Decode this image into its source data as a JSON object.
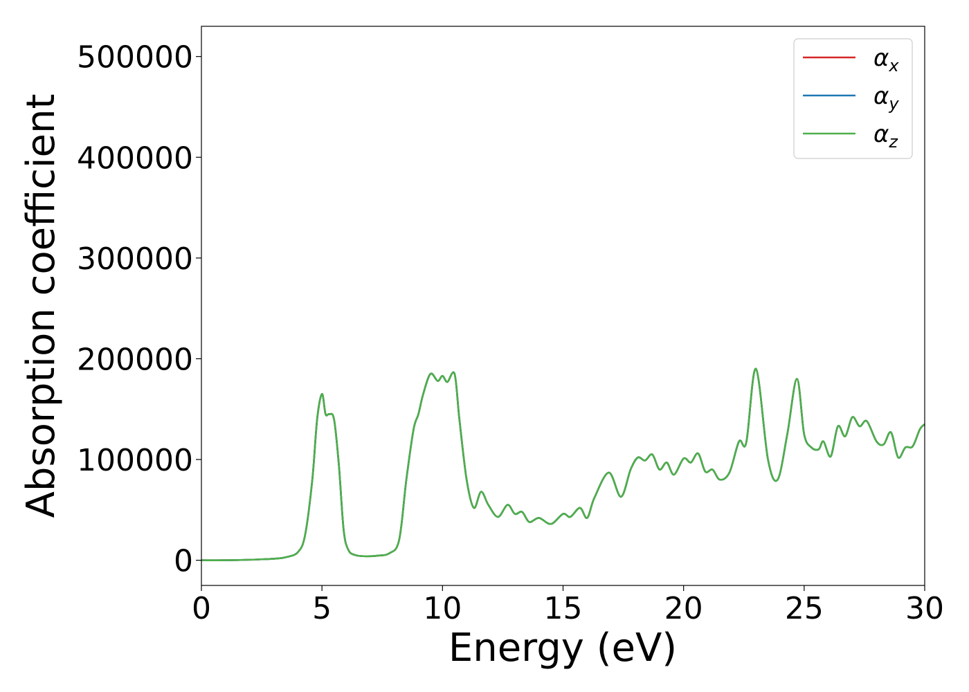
{
  "chart_data": {
    "type": "line",
    "title": "",
    "xlabel": "Energy (eV)",
    "ylabel": "Absorption coefficient",
    "xlim": [
      0,
      30
    ],
    "ylim": [
      -25000,
      530000
    ],
    "xticks": [
      0,
      5,
      10,
      15,
      20,
      25,
      30
    ],
    "xtick_labels": [
      "0",
      "5",
      "10",
      "15",
      "20",
      "25",
      "30"
    ],
    "yticks": [
      0,
      100000,
      200000,
      300000,
      400000,
      500000
    ],
    "ytick_labels": [
      "0",
      "100000",
      "200000",
      "300000",
      "400000",
      "500000"
    ],
    "grid": false,
    "legend_position": "top-right",
    "legend": [
      {
        "symbol": "α",
        "subscript": "x",
        "color": "#d62728"
      },
      {
        "symbol": "α",
        "subscript": "y",
        "color": "#1f77b4"
      },
      {
        "symbol": "α",
        "subscript": "z",
        "color": "#4daf4a"
      }
    ],
    "x": [
      0,
      1,
      2,
      3,
      3.5,
      4,
      4.3,
      4.6,
      4.8,
      5.0,
      5.15,
      5.3,
      5.5,
      5.7,
      5.9,
      6.1,
      6.4,
      6.8,
      7.3,
      7.8,
      8.2,
      8.5,
      8.8,
      9.0,
      9.2,
      9.5,
      9.8,
      10.0,
      10.2,
      10.5,
      10.7,
      11.0,
      11.3,
      11.6,
      11.9,
      12.3,
      12.7,
      13.0,
      13.3,
      13.6,
      14.0,
      14.5,
      15.0,
      15.3,
      15.7,
      16.0,
      16.3,
      16.9,
      17.4,
      17.8,
      18.1,
      18.4,
      18.7,
      19.0,
      19.3,
      19.6,
      20.0,
      20.3,
      20.6,
      20.9,
      21.2,
      21.5,
      21.9,
      22.3,
      22.6,
      23.0,
      23.5,
      23.9,
      24.3,
      24.7,
      25.0,
      25.3,
      25.6,
      25.8,
      26.1,
      26.4,
      26.7,
      27.0,
      27.3,
      27.6,
      28.0,
      28.3,
      28.6,
      28.9,
      29.2,
      29.5,
      29.8,
      30.0
    ],
    "series": [
      {
        "values": [
          0,
          0,
          500,
          1500,
          3000,
          8000,
          25000,
          80000,
          140000,
          165000,
          145000,
          145000,
          140000,
          95000,
          30000,
          10000,
          5000,
          4000,
          4500,
          7000,
          20000,
          80000,
          130000,
          145000,
          165000,
          185000,
          178000,
          183000,
          177000,
          185000,
          140000,
          80000,
          52000,
          68000,
          55000,
          43000,
          55000,
          46000,
          48000,
          38000,
          42000,
          36000,
          46000,
          43000,
          52000,
          42000,
          62000,
          87000,
          63000,
          90000,
          102000,
          99000,
          105000,
          90000,
          97000,
          85000,
          101000,
          97000,
          106000,
          88000,
          90000,
          80000,
          87000,
          118000,
          117000,
          190000,
          100000,
          80000,
          125000,
          180000,
          125000,
          112000,
          110000,
          118000,
          103000,
          133000,
          123000,
          142000,
          133000,
          138000,
          118000,
          115000,
          127000,
          102000,
          112000,
          113000,
          130000,
          135000
        ]
      },
      {
        "values": [
          0,
          0,
          500,
          1500,
          3000,
          8000,
          25000,
          80000,
          140000,
          165000,
          145000,
          145000,
          140000,
          95000,
          30000,
          10000,
          5000,
          4000,
          4500,
          7000,
          20000,
          80000,
          130000,
          145000,
          165000,
          185000,
          178000,
          183000,
          177000,
          185000,
          140000,
          80000,
          52000,
          68000,
          55000,
          43000,
          55000,
          46000,
          48000,
          38000,
          42000,
          36000,
          46000,
          43000,
          52000,
          42000,
          62000,
          87000,
          63000,
          90000,
          102000,
          99000,
          105000,
          90000,
          97000,
          85000,
          101000,
          97000,
          106000,
          88000,
          90000,
          80000,
          87000,
          118000,
          117000,
          190000,
          100000,
          80000,
          125000,
          180000,
          125000,
          112000,
          110000,
          118000,
          103000,
          133000,
          123000,
          142000,
          133000,
          138000,
          118000,
          115000,
          127000,
          102000,
          112000,
          113000,
          130000,
          135000
        ]
      },
      {
        "values": [
          0,
          0,
          500,
          1500,
          3000,
          8000,
          25000,
          80000,
          140000,
          165000,
          145000,
          145000,
          140000,
          95000,
          30000,
          10000,
          5000,
          4000,
          4500,
          7000,
          20000,
          80000,
          130000,
          145000,
          165000,
          185000,
          178000,
          183000,
          177000,
          185000,
          140000,
          80000,
          52000,
          68000,
          55000,
          43000,
          55000,
          46000,
          48000,
          38000,
          42000,
          36000,
          46000,
          43000,
          52000,
          42000,
          62000,
          87000,
          63000,
          90000,
          102000,
          99000,
          105000,
          90000,
          97000,
          85000,
          101000,
          97000,
          106000,
          88000,
          90000,
          80000,
          87000,
          118000,
          117000,
          190000,
          100000,
          80000,
          125000,
          180000,
          125000,
          112000,
          110000,
          118000,
          103000,
          133000,
          123000,
          142000,
          133000,
          138000,
          118000,
          115000,
          127000,
          102000,
          112000,
          113000,
          130000,
          135000
        ]
      }
    ]
  }
}
